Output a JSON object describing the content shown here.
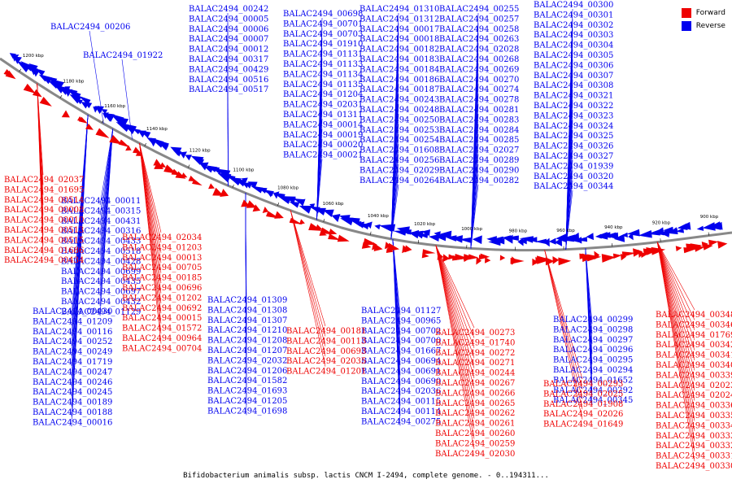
{
  "caption": "Bifidobacterium animalis subsp. lactis CNCM I-2494, complete genome. - 0..194311...",
  "legend": [
    {
      "label": "Forward",
      "color": "#ee0000"
    },
    {
      "label": "Reverse",
      "color": "#0000ee"
    }
  ],
  "colors": {
    "forward": "#ee0000",
    "reverse": "#0000ee",
    "backbone": "#888888"
  },
  "ticks": [
    "1200 kbp",
    "1180 kbp",
    "1160 kbp",
    "1140 kbp",
    "1120 kbp",
    "1100 kbp",
    "1080 kbp",
    "1060 kbp",
    "1040 kbp",
    "1020 kbp",
    "1000 kbp",
    "980 kbp",
    "960 kbp",
    "940 kbp",
    "920 kbp",
    "900 kbp"
  ],
  "reverse_labels": [
    "BALAC2494_00206",
    "BALAC2494_01922",
    "BALAC2494_00242",
    "BALAC2494_00005",
    "BALAC2494_00006",
    "BALAC2494_00007",
    "BALAC2494_00012",
    "BALAC2494_00317",
    "BALAC2494_00429",
    "BALAC2494_00516",
    "BALAC2494_00517",
    "BALAC2494_00698",
    "BALAC2494_00701",
    "BALAC2494_00703",
    "BALAC2494_01910",
    "BALAC2494_01131",
    "BALAC2494_01133",
    "BALAC2494_01134",
    "BALAC2494_01135",
    "BALAC2494_01204",
    "BALAC2494_02031",
    "BALAC2494_01311",
    "BALAC2494_00014",
    "BALAC2494_00019",
    "BALAC2494_00020",
    "BALAC2494_00021",
    "BALAC2494_01310",
    "BALAC2494_01312",
    "BALAC2494_00017",
    "BALAC2494_00018",
    "BALAC2494_00182",
    "BALAC2494_00183",
    "BALAC2494_00184",
    "BALAC2494_00186",
    "BALAC2494_00187",
    "BALAC2494_00243",
    "BALAC2494_00248",
    "BALAC2494_00250",
    "BALAC2494_00253",
    "BALAC2494_00254",
    "BALAC2494_01608",
    "BALAC2494_00256",
    "BALAC2494_02029",
    "BALAC2494_00264",
    "BALAC2494_00255",
    "BALAC2494_00257",
    "BALAC2494_00258",
    "BALAC2494_00263",
    "BALAC2494_02028",
    "BALAC2494_00268",
    "BALAC2494_00269",
    "BALAC2494_00270",
    "BALAC2494_00274",
    "BALAC2494_00278",
    "BALAC2494_00281",
    "BALAC2494_00283",
    "BALAC2494_00284",
    "BALAC2494_00285",
    "BALAC2494_02027",
    "BALAC2494_00289",
    "BALAC2494_00290",
    "BALAC2494_00282",
    "BALAC2494_00300",
    "BALAC2494_00301",
    "BALAC2494_00302",
    "BALAC2494_00303",
    "BALAC2494_00304",
    "BALAC2494_00305",
    "BALAC2494_00306",
    "BALAC2494_00307",
    "BALAC2494_00308",
    "BALAC2494_00321",
    "BALAC2494_00322",
    "BALAC2494_00323",
    "BALAC2494_00324",
    "BALAC2494_00325",
    "BALAC2494_00326",
    "BALAC2494_00327",
    "BALAC2494_01939",
    "BALAC2494_00320",
    "BALAC2494_00344",
    "BALAC2494_00011",
    "BALAC2494_00315",
    "BALAC2494_00431",
    "BALAC2494_00316",
    "BALAC2494_00433",
    "BALAC2494_00518",
    "BALAC2494_00428",
    "BALAC2494_00699",
    "BALAC2494_00435",
    "BALAC2494_00697",
    "BALAC2494_00432",
    "BALAC2494_01129",
    "BALAC2494_00430",
    "BALAC2494_01209",
    "BALAC2494_00116",
    "BALAC2494_00252",
    "BALAC2494_00249",
    "BALAC2494_01719",
    "BALAC2494_00247",
    "BALAC2494_00246",
    "BALAC2494_00245",
    "BALAC2494_00189",
    "BALAC2494_00188",
    "BALAC2494_00016",
    "BALAC2494_01309",
    "BALAC2494_01308",
    "BALAC2494_01307",
    "BALAC2494_01210",
    "BALAC2494_01208",
    "BALAC2494_01207",
    "BALAC2494_02032",
    "BALAC2494_01206",
    "BALAC2494_01582",
    "BALAC2494_01693",
    "BALAC2494_01205",
    "BALAC2494_01698",
    "BALAC2494_01127",
    "BALAC2494_00965",
    "BALAC2494_00702",
    "BALAC2494_00700",
    "BALAC2494_01667",
    "BALAC2494_00694",
    "BALAC2494_00691",
    "BALAC2494_00690",
    "BALAC2494_02036",
    "BALAC2494_00115",
    "BALAC2494_00114",
    "BALAC2494_00275",
    "BALAC2494_00299",
    "BALAC2494_00298",
    "BALAC2494_00297",
    "BALAC2494_00296",
    "BALAC2494_00295",
    "BALAC2494_00294",
    "BALAC2494_01652",
    "BALAC2494_00292",
    "BALAC2494_00345"
  ],
  "forward_labels": [
    "BALAC2494_02037",
    "BALAC2494_01695",
    "BALAC2494_00514",
    "BALAC2494_00008",
    "BALAC2494_00010",
    "BALAC2494_00513",
    "BALAC2494_00515",
    "BALAC2494_01686",
    "BALAC2494_00434",
    "BALAC2494_02034",
    "BALAC2494_01203",
    "BALAC2494_00013",
    "BALAC2494_00705",
    "BALAC2494_00185",
    "BALAC2494_00696",
    "BALAC2494_01202",
    "BALAC2494_00692",
    "BALAC2494_00015",
    "BALAC2494_01572",
    "BALAC2494_00964",
    "BALAC2494_00704",
    "BALAC2494_00181",
    "BALAC2494_00113",
    "BALAC2494_00693",
    "BALAC2494_02035",
    "BALAC2494_01201",
    "BALAC2494_00273",
    "BALAC2494_01740",
    "BALAC2494_00272",
    "BALAC2494_00271",
    "BALAC2494_00244",
    "BALAC2494_00267",
    "BALAC2494_00266",
    "BALAC2494_00265",
    "BALAC2494_00262",
    "BALAC2494_00261",
    "BALAC2494_00260",
    "BALAC2494_00259",
    "BALAC2494_02030",
    "BALAC2494_00293",
    "BALAC2494_02025",
    "BALAC2494_01908",
    "BALAC2494_02026",
    "BALAC2494_01649",
    "BALAC2494_00348",
    "BALAC2494_00346",
    "BALAC2494_01769",
    "BALAC2494_00342",
    "BALAC2494_00341",
    "BALAC2494_00340",
    "BALAC2494_00339",
    "BALAC2494_02023",
    "BALAC2494_02024",
    "BALAC2494_00336",
    "BALAC2494_00335",
    "BALAC2494_00334",
    "BALAC2494_00333",
    "BALAC2494_00332",
    "BALAC2494_00331",
    "BALAC2494_00330"
  ]
}
